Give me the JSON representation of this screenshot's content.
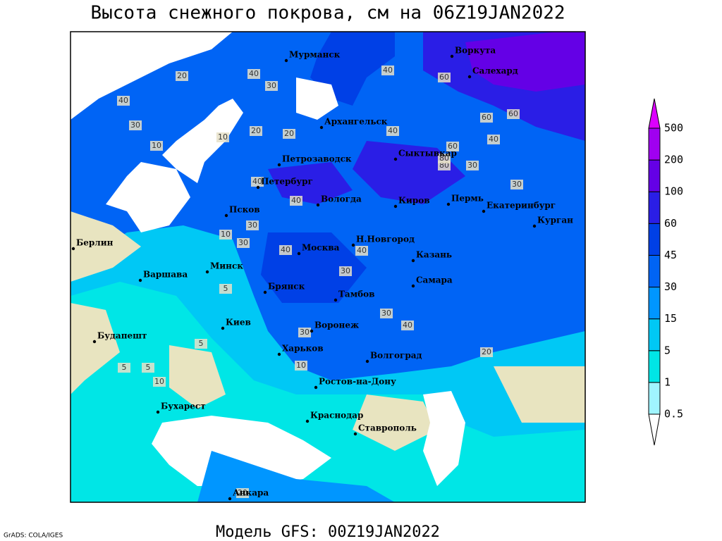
{
  "title": "Высота снежного покрова, см на 06Z19JAN2022",
  "footer": "Модель GFS: 00Z19JAN2022",
  "credit": "GrADS: COLA/IGES",
  "cities": [
    "Мурманск",
    "Воркута",
    "Салехард",
    "Архангельск",
    "Петрозаводск",
    "Сыктывкар",
    "Петербург",
    "Вологда",
    "Киров",
    "Пермь",
    "Екатеринбург",
    "Курган",
    "Псков",
    "Берлин",
    "Н.Новгород",
    "Казань",
    "Москва",
    "Минск",
    "Варшава",
    "Брянск",
    "Самара",
    "Тамбов",
    "Киев",
    "Воронеж",
    "Будапешт",
    "Харьков",
    "Волгоград",
    "Ростов-на-Дону",
    "Бухарест",
    "Краснодар",
    "Ставрополь",
    "Анкара"
  ],
  "contour_labels": [
    40,
    60,
    20,
    40,
    30,
    40,
    30,
    20,
    10,
    10,
    20,
    40,
    60,
    80,
    40,
    30,
    30,
    60,
    40,
    40,
    30,
    30,
    40,
    30,
    5,
    5,
    10,
    5,
    30,
    10,
    20,
    30,
    5,
    40,
    40,
    20,
    60,
    80,
    10
  ],
  "legend": {
    "levels": [
      0.5,
      1,
      5,
      15,
      30,
      45,
      60,
      100,
      200,
      500
    ],
    "colors": [
      "#ffffff",
      "#a0f5ff",
      "#00e6e6",
      "#00c8f5",
      "#0096ff",
      "#0064f5",
      "#0040e6",
      "#2a1ee6",
      "#6400e6",
      "#a000f0",
      "#dc00ff"
    ]
  }
}
